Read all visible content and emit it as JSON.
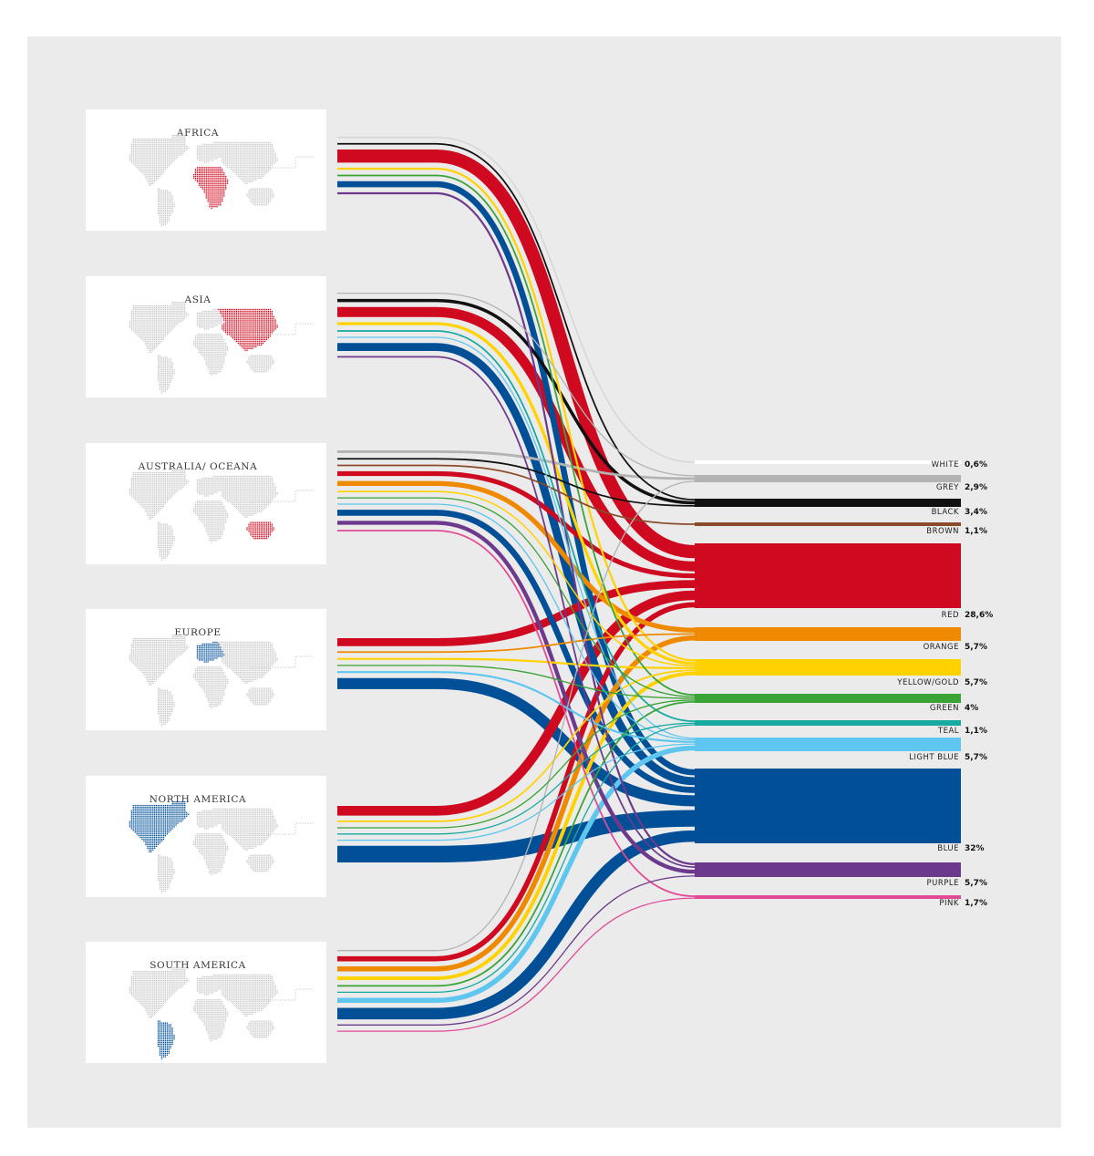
{
  "chart_data": {
    "type": "sankey",
    "title": "",
    "colors": {
      "white": "#d4d4d4",
      "grey": "#b3b3b3",
      "black": "#111111",
      "brown": "#8a4b28",
      "red": "#cf0a20",
      "orange": "#ef8a00",
      "yellow": "#ffd200",
      "green": "#3aa335",
      "teal": "#17aaa0",
      "lightblue": "#5ec6ef",
      "blue": "#015097",
      "purple": "#6c3a8c",
      "pink": "#e24a95"
    },
    "regions": [
      {
        "name": "AFRICA",
        "highlight": "#cf0a20",
        "flows": [
          {
            "color": "white",
            "value": 0.6
          },
          {
            "color": "black",
            "value": 0.8
          },
          {
            "color": "red",
            "value": 6.5
          },
          {
            "color": "yellow",
            "value": 1.0
          },
          {
            "color": "green",
            "value": 0.8
          },
          {
            "color": "blue",
            "value": 3.0
          },
          {
            "color": "purple",
            "value": 1.0
          }
        ]
      },
      {
        "name": "ASIA",
        "highlight": "#cf0a20",
        "flows": [
          {
            "color": "grey",
            "value": 0.4
          },
          {
            "color": "black",
            "value": 1.6
          },
          {
            "color": "red",
            "value": 5.0
          },
          {
            "color": "yellow",
            "value": 1.5
          },
          {
            "color": "teal",
            "value": 0.8
          },
          {
            "color": "lightblue",
            "value": 0.6
          },
          {
            "color": "blue",
            "value": 4.0
          },
          {
            "color": "purple",
            "value": 0.8
          }
        ]
      },
      {
        "name": "AUSTRALIA/ OCEANA",
        "highlight": "#cf0a20",
        "flows": [
          {
            "color": "grey",
            "value": 1.3
          },
          {
            "color": "black",
            "value": 0.8
          },
          {
            "color": "brown",
            "value": 0.8
          },
          {
            "color": "red",
            "value": 2.4
          },
          {
            "color": "orange",
            "value": 2.4
          },
          {
            "color": "yellow",
            "value": 0.7
          },
          {
            "color": "green",
            "value": 0.6
          },
          {
            "color": "lightblue",
            "value": 0.6
          },
          {
            "color": "blue",
            "value": 3.0
          },
          {
            "color": "purple",
            "value": 2.0
          },
          {
            "color": "pink",
            "value": 0.8
          }
        ]
      },
      {
        "name": "EUROPE",
        "highlight": "#015097",
        "flows": [
          {
            "color": "red",
            "value": 4.0
          },
          {
            "color": "orange",
            "value": 0.8
          },
          {
            "color": "yellow",
            "value": 1.0
          },
          {
            "color": "green",
            "value": 0.6
          },
          {
            "color": "lightblue",
            "value": 1.0
          },
          {
            "color": "blue",
            "value": 5.5
          }
        ]
      },
      {
        "name": "NORTH AMERICA",
        "highlight": "#015097",
        "flows": [
          {
            "color": "red",
            "value": 4.8
          },
          {
            "color": "yellow",
            "value": 0.8
          },
          {
            "color": "green",
            "value": 0.5
          },
          {
            "color": "teal",
            "value": 0.5
          },
          {
            "color": "lightblue",
            "value": 0.6
          },
          {
            "color": "blue",
            "value": 8.3
          }
        ]
      },
      {
        "name": "SOUTH AMERICA",
        "highlight": "#015097",
        "flows": [
          {
            "color": "grey",
            "value": 0.6
          },
          {
            "color": "red",
            "value": 2.6
          },
          {
            "color": "orange",
            "value": 2.5
          },
          {
            "color": "yellow",
            "value": 1.8
          },
          {
            "color": "green",
            "value": 0.8
          },
          {
            "color": "teal",
            "value": 0.5
          },
          {
            "color": "lightblue",
            "value": 2.5
          },
          {
            "color": "blue",
            "value": 5.7
          },
          {
            "color": "purple",
            "value": 0.6
          },
          {
            "color": "pink",
            "value": 0.6
          }
        ]
      }
    ],
    "buckets": [
      {
        "color": "white",
        "label": "WHITE",
        "value_label": "0,6%"
      },
      {
        "color": "grey",
        "label": "GREY",
        "value_label": "2,9%"
      },
      {
        "color": "black",
        "label": "BLACK",
        "value_label": "3,4%"
      },
      {
        "color": "brown",
        "label": "BROWN",
        "value_label": "1,1%"
      },
      {
        "color": "red",
        "label": "RED",
        "value_label": "28,6%"
      },
      {
        "color": "orange",
        "label": "ORANGE",
        "value_label": "5,7%"
      },
      {
        "color": "yellow",
        "label": "YELLOW/GOLD",
        "value_label": "5,7%"
      },
      {
        "color": "green",
        "label": "GREEN",
        "value_label": "4%"
      },
      {
        "color": "teal",
        "label": "TEAL",
        "value_label": "1,1%"
      },
      {
        "color": "lightblue",
        "label": "LIGHT BLUE",
        "value_label": "5,7%"
      },
      {
        "color": "blue",
        "label": "BLUE",
        "value_label": "32%"
      },
      {
        "color": "purple",
        "label": "PURPLE",
        "value_label": "5,7%"
      },
      {
        "color": "pink",
        "label": "PINK",
        "value_label": "1,7%"
      }
    ]
  }
}
